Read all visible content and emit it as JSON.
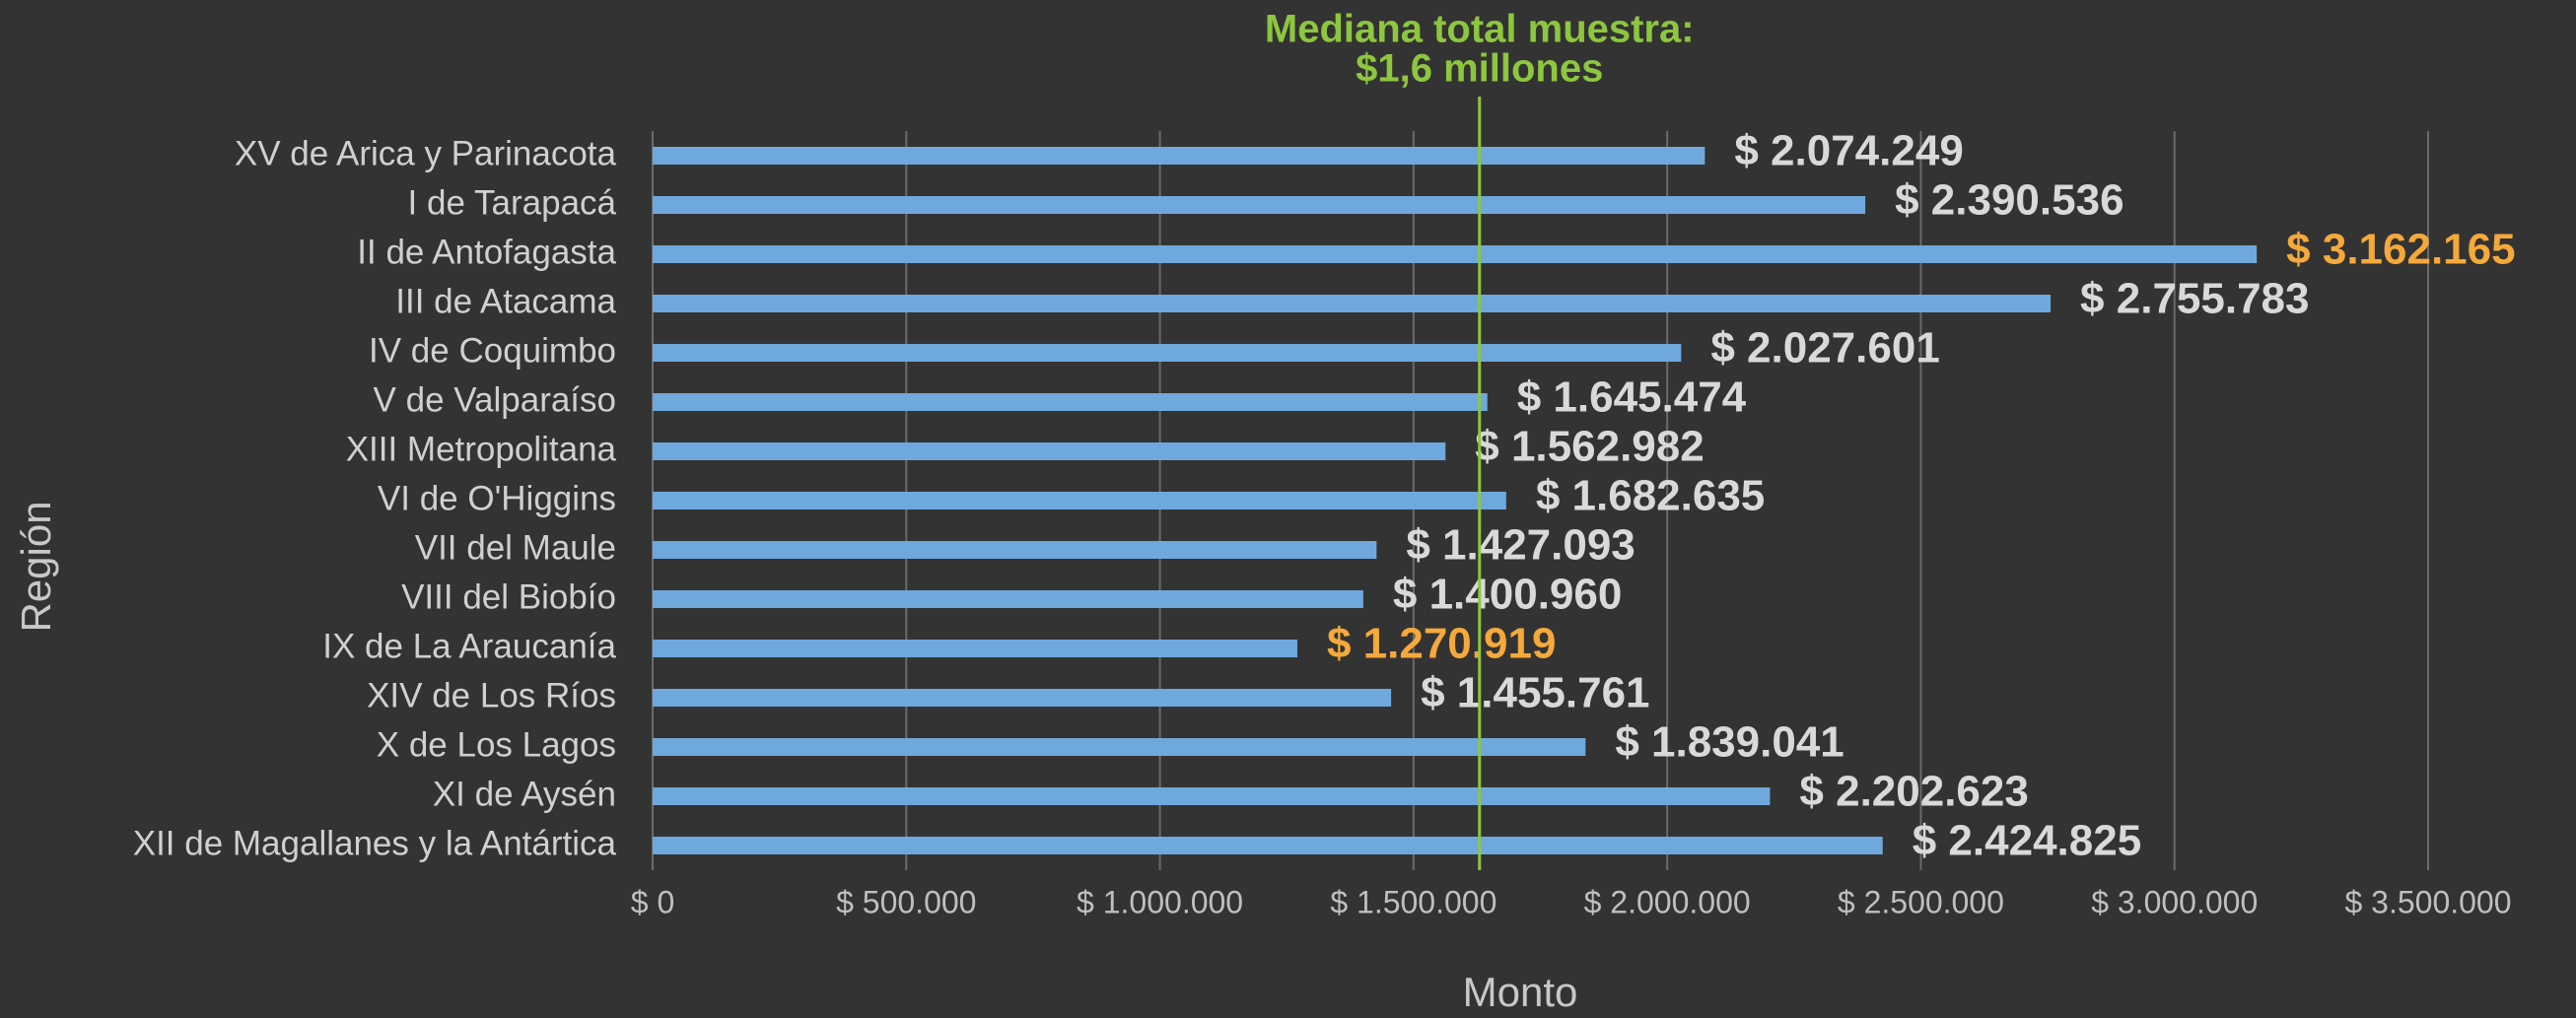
{
  "chart_data": {
    "type": "bar",
    "orientation": "horizontal",
    "x_label": "Monto",
    "y_label": "Región",
    "categories": [
      "XV de Arica y Parinacota",
      "I de Tarapacá",
      "II de Antofagasta",
      "III de Atacama",
      "IV de Coquimbo",
      "V de Valparaíso",
      "XIII Metropolitana",
      "VI de O'Higgins",
      "VII del Maule",
      "VIII del Biobío",
      "IX de La Araucanía",
      "XIV de Los Ríos",
      "X de Los Lagos",
      "XI de Aysén",
      "XII de Magallanes y la Antártica"
    ],
    "values": [
      2074249,
      2390536,
      3162165,
      2755783,
      2027601,
      1645474,
      1562982,
      1682635,
      1427093,
      1400960,
      1270919,
      1455761,
      1839041,
      2202623,
      2424825
    ],
    "value_labels": [
      "$ 2.074.249",
      "$ 2.390.536",
      "$ 3.162.165",
      "$ 2.755.783",
      "$ 2.027.601",
      "$ 1.645.474",
      "$ 1.562.982",
      "$ 1.682.635",
      "$ 1.427.093",
      "$ 1.400.960",
      "$ 1.270.919",
      "$ 1.455.761",
      "$ 1.839.041",
      "$ 2.202.623",
      "$ 2.424.825"
    ],
    "color": "#6fa8dc",
    "value_label_colors": [
      "#d9d9d9",
      "#d9d9d9",
      "#f5a93b",
      "#d9d9d9",
      "#d9d9d9",
      "#d9d9d9",
      "#d9d9d9",
      "#d9d9d9",
      "#d9d9d9",
      "#d9d9d9",
      "#f5a93b",
      "#d9d9d9",
      "#d9d9d9",
      "#d9d9d9",
      "#d9d9d9"
    ],
    "xlim": [
      0,
      3500000
    ],
    "xticks": [
      {
        "value": 0,
        "label": "$ 0"
      },
      {
        "value": 500000,
        "label": "$ 500.000"
      },
      {
        "value": 1000000,
        "label": "$ 1.000.000"
      },
      {
        "value": 1500000,
        "label": "$ 1.500.000"
      },
      {
        "value": 2000000,
        "label": "$ 2.000.000"
      },
      {
        "value": 2500000,
        "label": "$ 2.500.000"
      },
      {
        "value": 3000000,
        "label": "$ 3.000.000"
      },
      {
        "value": 3500000,
        "label": "$ 3.500.000"
      }
    ],
    "grid": true,
    "reference_line": {
      "value": 1630000,
      "label": [
        "Mediana total muestra:",
        "$1,6 millones"
      ],
      "color": "#8dc63f"
    }
  }
}
